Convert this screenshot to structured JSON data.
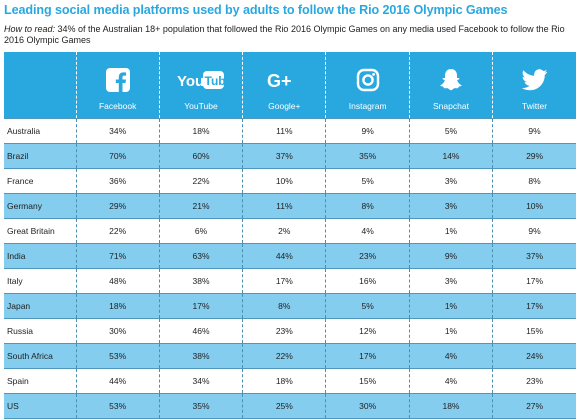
{
  "header": {
    "title": "Leading social media platforms used by adults to follow the Rio 2016 Olympic Games",
    "howto_label": "How to read:",
    "howto_text": " 34% of the Australian 18+ population that followed the Rio 2016 Olympic Games on any media used Facebook to follow the Rio 2016 Olympic Games"
  },
  "platforms": [
    {
      "name": "Facebook",
      "icon": "facebook-icon"
    },
    {
      "name": "YouTube",
      "icon": "youtube-icon"
    },
    {
      "name": "Google+",
      "icon": "google-plus-icon"
    },
    {
      "name": "Instagram",
      "icon": "instagram-icon"
    },
    {
      "name": "Snapchat",
      "icon": "snapchat-icon"
    },
    {
      "name": "Twitter",
      "icon": "twitter-icon"
    }
  ],
  "colors": {
    "header_blue": "#29a8e0",
    "stripe_blue": "#85cdef",
    "title_blue": "#29a8e0"
  },
  "chart_data": {
    "type": "table",
    "title": "Leading social media platforms used by adults to follow the Rio 2016 Olympic Games",
    "columns": [
      "Facebook",
      "YouTube",
      "Google+",
      "Instagram",
      "Snapchat",
      "Twitter"
    ],
    "rows": [
      {
        "country": "Australia",
        "values": [
          "34%",
          "18%",
          "11%",
          "9%",
          "5%",
          "9%"
        ]
      },
      {
        "country": "Brazil",
        "values": [
          "70%",
          "60%",
          "37%",
          "35%",
          "14%",
          "29%"
        ]
      },
      {
        "country": "France",
        "values": [
          "36%",
          "22%",
          "10%",
          "5%",
          "3%",
          "8%"
        ]
      },
      {
        "country": "Germany",
        "values": [
          "29%",
          "21%",
          "11%",
          "8%",
          "3%",
          "10%"
        ]
      },
      {
        "country": "Great Britain",
        "values": [
          "22%",
          "6%",
          "2%",
          "4%",
          "1%",
          "9%"
        ]
      },
      {
        "country": "India",
        "values": [
          "71%",
          "63%",
          "44%",
          "23%",
          "9%",
          "37%"
        ]
      },
      {
        "country": "Italy",
        "values": [
          "48%",
          "38%",
          "17%",
          "16%",
          "3%",
          "17%"
        ]
      },
      {
        "country": "Japan",
        "values": [
          "18%",
          "17%",
          "8%",
          "5%",
          "1%",
          "17%"
        ]
      },
      {
        "country": "Russia",
        "values": [
          "30%",
          "46%",
          "23%",
          "12%",
          "1%",
          "15%"
        ]
      },
      {
        "country": "South Africa",
        "values": [
          "53%",
          "38%",
          "22%",
          "17%",
          "4%",
          "24%"
        ]
      },
      {
        "country": "Spain",
        "values": [
          "44%",
          "34%",
          "18%",
          "15%",
          "4%",
          "23%"
        ]
      },
      {
        "country": "US",
        "values": [
          "53%",
          "35%",
          "25%",
          "30%",
          "18%",
          "27%"
        ]
      }
    ]
  }
}
